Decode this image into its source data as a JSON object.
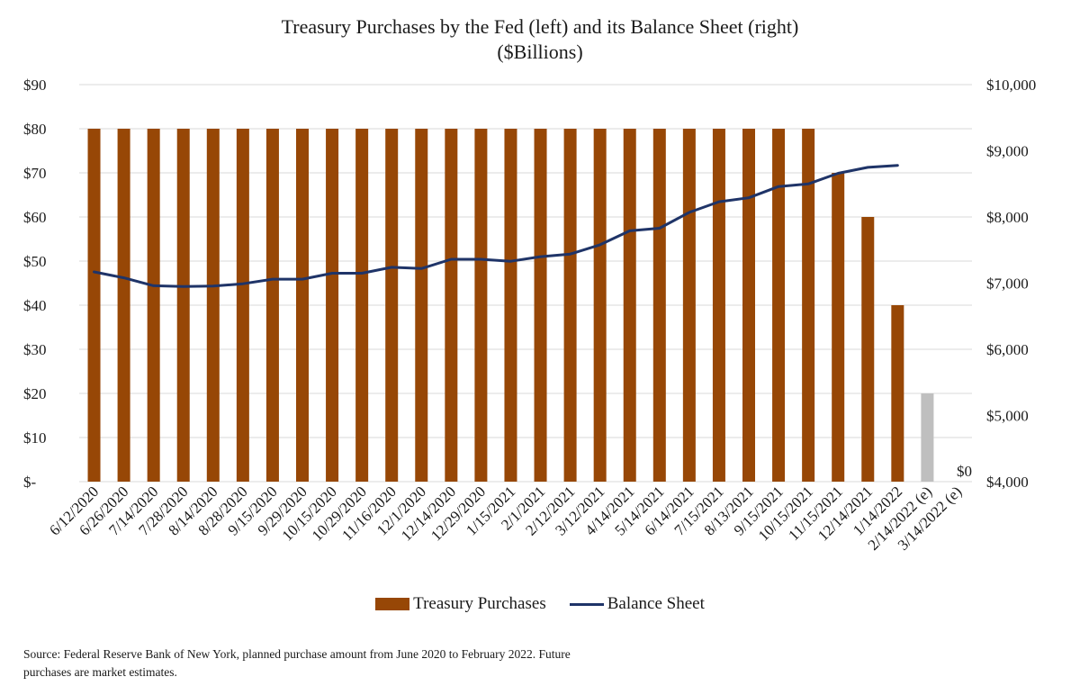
{
  "chart_data": {
    "type": "bar+line",
    "title_line1": "Treasury Purchases by the Fed (left) and its Balance Sheet (right)",
    "title_line2": "($Billions)",
    "categories": [
      "6/12/2020",
      "6/26/2020",
      "7/14/2020",
      "7/28/2020",
      "8/14/2020",
      "8/28/2020",
      "9/15/2020",
      "9/29/2020",
      "10/15/2020",
      "10/29/2020",
      "11/16/2020",
      "12/1/2020",
      "12/14/2020",
      "12/29/2020",
      "1/15/2021",
      "2/1/2021",
      "2/12/2021",
      "3/12/2021",
      "4/14/2021",
      "5/14/2021",
      "6/14/2021",
      "7/15/2021",
      "8/13/2021",
      "9/15/2021",
      "10/15/2021",
      "11/15/2021",
      "12/14/2021",
      "1/14/2022",
      "2/14/2022 (e)",
      "3/14/2022 (e)"
    ],
    "series": [
      {
        "name": "Treasury Purchases",
        "axis": "left",
        "values": [
          80,
          80,
          80,
          80,
          80,
          80,
          80,
          80,
          80,
          80,
          80,
          80,
          80,
          80,
          80,
          80,
          80,
          80,
          80,
          80,
          80,
          80,
          80,
          80,
          80,
          70,
          60,
          40,
          20,
          0
        ],
        "estimated_from_index": 28
      },
      {
        "name": "Balance Sheet",
        "axis": "right",
        "values": [
          7170,
          7080,
          6960,
          6950,
          6955,
          6990,
          7060,
          7060,
          7150,
          7150,
          7240,
          7220,
          7360,
          7360,
          7330,
          7400,
          7440,
          7580,
          7790,
          7830,
          8070,
          8230,
          8290,
          8460,
          8500,
          8660,
          8750,
          8780,
          null,
          null
        ]
      }
    ],
    "left_axis": {
      "ylim": [
        0,
        90
      ],
      "ticks": [
        "$-",
        "$10",
        "$20",
        "$30",
        "$40",
        "$50",
        "$60",
        "$70",
        "$80",
        "$90"
      ]
    },
    "right_axis": {
      "ylim": [
        4000,
        10000
      ],
      "ticks": [
        "$4,000",
        "$5,000",
        "$6,000",
        "$7,000",
        "$8,000",
        "$9,000",
        "$10,000"
      ]
    },
    "annotations": [
      {
        "category_index": 29,
        "text": "$0"
      }
    ],
    "grid": true,
    "legend_position": "bottom",
    "colors": {
      "bars": "#974706",
      "bars_estimated": "#bfbfbf",
      "line": "#1f3468",
      "grid": "#d9d9d9"
    }
  },
  "source_note": "Source: Federal Reserve Bank of New York, planned purchase amount from June 2020 to February 2022. Future purchases are market estimates."
}
